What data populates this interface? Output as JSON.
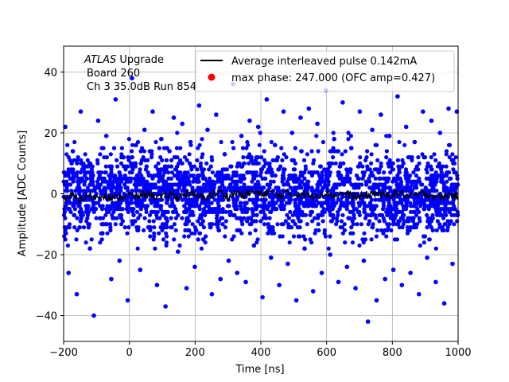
{
  "chart_data": {
    "type": "scatter",
    "xlabel": "Time [ns]",
    "ylabel": "Amplitude [ADC Counts]",
    "xlim": [
      -200,
      1000
    ],
    "ylim": [
      -48.5,
      48.5
    ],
    "xticks": [
      -200,
      0,
      200,
      400,
      600,
      800,
      1000
    ],
    "yticks": [
      -40,
      -20,
      0,
      20,
      40
    ],
    "xtick_labels": [
      "−200",
      "0",
      "200",
      "400",
      "600",
      "800",
      "1000"
    ],
    "ytick_labels": [
      "−40",
      "−20",
      "0",
      "20",
      "40"
    ],
    "grid": true,
    "legend_position": "top-right",
    "annotation": {
      "line1_italic": "ATLAS",
      "line1_rest": " Upgrade",
      "line2": "Board 260",
      "line3": "Ch 3 35.0dB  Run 854"
    },
    "series": [
      {
        "name": "Average interleaved pulse 0.142mA",
        "kind": "line",
        "color": "#000000",
        "x": [
          -200,
          -175,
          -150,
          -125,
          -100,
          -75,
          -50,
          -25,
          0,
          25,
          50,
          75,
          100,
          125,
          150,
          175,
          200,
          225,
          250,
          275,
          300,
          325,
          350,
          375,
          400,
          425,
          450,
          475,
          500,
          525,
          550,
          575,
          600,
          625,
          650,
          675,
          700,
          725,
          750,
          775,
          800,
          825,
          850,
          875,
          900,
          925,
          950,
          975,
          1000
        ],
        "y": [
          -1.5,
          -0.8,
          -1.9,
          -0.6,
          -1.2,
          -0.3,
          -1.7,
          -0.9,
          -0.4,
          -1.1,
          0.2,
          -0.7,
          -1.3,
          -0.2,
          -0.9,
          0.1,
          -0.6,
          -1.4,
          -0.3,
          0.4,
          -0.8,
          0.3,
          -0.5,
          0.6,
          -0.2,
          0.5,
          -0.9,
          0.2,
          -0.4,
          0.3,
          -1.0,
          -0.2,
          0.4,
          -0.7,
          0.1,
          -0.5,
          -1.1,
          -0.3,
          0.2,
          -0.8,
          -0.2,
          0.3,
          -0.9,
          -0.4,
          0.1,
          -0.6,
          -1.2,
          -0.3,
          -0.8
        ]
      },
      {
        "name": "max phase: 247.000 (OFC amp=0.427)",
        "kind": "scatter",
        "color": "#ff0000",
        "x": [],
        "y": []
      },
      {
        "name": "",
        "kind": "scatter",
        "color": "#0000ff",
        "x": [
          -195,
          -185,
          -172,
          -160,
          -148,
          -135,
          -120,
          -108,
          -95,
          -82,
          -70,
          -55,
          -42,
          -30,
          -18,
          -5,
          8,
          20,
          33,
          46,
          58,
          71,
          84,
          97,
          110,
          122,
          135,
          148,
          161,
          174,
          186,
          199,
          212,
          225,
          238,
          251,
          264,
          277,
          290,
          302,
          315,
          328,
          341,
          354,
          366,
          379,
          392,
          405,
          418,
          431,
          443,
          456,
          469,
          482,
          495,
          508,
          521,
          533,
          546,
          559,
          572,
          585,
          598,
          611,
          623,
          636,
          649,
          662,
          675,
          688,
          701,
          713,
          726,
          739,
          752,
          765,
          778,
          791,
          803,
          816,
          829,
          842,
          855,
          868,
          881,
          893,
          906,
          919,
          932,
          945,
          958,
          971,
          983,
          996
        ],
        "y": [
          22,
          -26,
          14,
          -33,
          27,
          9,
          -18,
          -40,
          24,
          -13,
          19,
          -28,
          31,
          -22,
          12,
          -35,
          38,
          16,
          -25,
          21,
          -11,
          27,
          -30,
          18,
          -37,
          14,
          25,
          -19,
          23,
          -31,
          17,
          -24,
          29,
          -15,
          21,
          -33,
          26,
          -28,
          13,
          -22,
          36,
          -26,
          19,
          -29,
          24,
          -17,
          22,
          -34,
          31,
          -21,
          16,
          -30,
          27,
          -23,
          20,
          -35,
          25,
          -18,
          28,
          -32,
          23,
          -26,
          34,
          -20,
          18,
          -29,
          30,
          -24,
          15,
          -31,
          27,
          -22,
          -42,
          21,
          -35,
          26,
          -28,
          19,
          -25,
          32,
          -30,
          22,
          -26,
          17,
          -33,
          27,
          -21,
          24,
          -29,
          20,
          -36,
          28,
          -23,
          27
        ]
      }
    ],
    "noise_band": {
      "series": "blue",
      "dense_min": -20,
      "dense_max": 22
    }
  }
}
